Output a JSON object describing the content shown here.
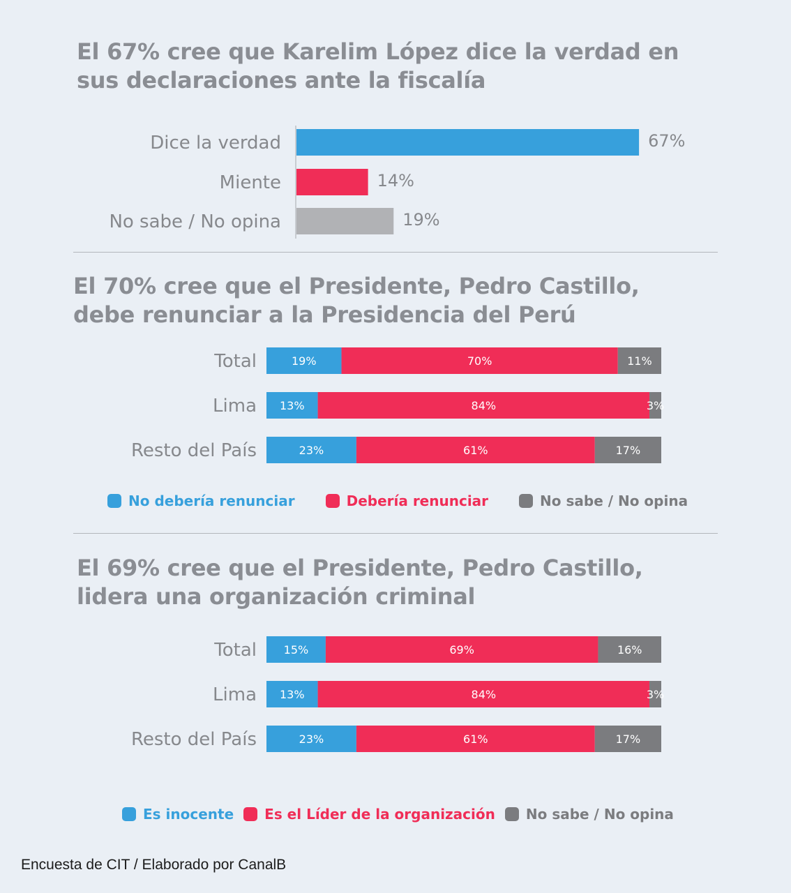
{
  "colors": {
    "blue": "#37a0dc",
    "red": "#f02d57",
    "gray": "#b1b2b5",
    "darkgray": "#7b7c7f",
    "title": "#8a8d93",
    "label": "#86888c"
  },
  "chart_data": [
    {
      "type": "bar",
      "orientation": "horizontal",
      "title": [
        "El 67% cree que Karelim López dice la verdad en",
        "sus declaraciones ante la fiscalía"
      ],
      "categories": [
        "Dice la verdad",
        "Miente",
        "No sabe / No opina"
      ],
      "values": [
        67,
        14,
        19
      ],
      "value_labels": [
        "67%",
        "14%",
        "19%"
      ],
      "bar_colors": [
        "#37a0dc",
        "#f02d57",
        "#b1b2b5"
      ],
      "unit": "%"
    },
    {
      "type": "bar",
      "orientation": "horizontal",
      "stacked": true,
      "title": [
        "El 70% cree que el Presidente, Pedro Castillo,",
        "debe renunciar a la Presidencia del Perú"
      ],
      "categories": [
        "Total",
        "Lima",
        "Resto del País"
      ],
      "series": [
        {
          "name": "No debería renunciar",
          "values": [
            19,
            13,
            23
          ],
          "labels": [
            "19%",
            "13%",
            "23%"
          ],
          "color": "#37a0dc"
        },
        {
          "name": "Debería renunciar",
          "values": [
            70,
            84,
            61
          ],
          "labels": [
            "70%",
            "84%",
            "61%"
          ],
          "color": "#f02d57"
        },
        {
          "name": "No sabe / No opina",
          "values": [
            11,
            3,
            17
          ],
          "labels": [
            "11%",
            "3%",
            "17%"
          ],
          "color": "#7b7c7f"
        }
      ],
      "legend": "bottom",
      "unit": "%"
    },
    {
      "type": "bar",
      "orientation": "horizontal",
      "stacked": true,
      "title": [
        "El 69% cree que el Presidente, Pedro Castillo,",
        "lidera una organización criminal"
      ],
      "categories": [
        "Total",
        "Lima",
        "Resto del País"
      ],
      "series": [
        {
          "name": "Es inocente",
          "values": [
            15,
            13,
            23
          ],
          "labels": [
            "15%",
            "13%",
            "23%"
          ],
          "color": "#37a0dc"
        },
        {
          "name": "Es el Líder de la organización",
          "values": [
            69,
            84,
            61
          ],
          "labels": [
            "69%",
            "84%",
            "61%"
          ],
          "color": "#f02d57"
        },
        {
          "name": "No sabe / No opina",
          "values": [
            16,
            3,
            17
          ],
          "labels": [
            "16%",
            "3%",
            "17%"
          ],
          "color": "#7b7c7f"
        }
      ],
      "legend": "bottom",
      "unit": "%"
    }
  ],
  "legend_text_colors": [
    "#37a0dc",
    "#f02d57",
    "#7b7c7f"
  ],
  "footer": "Encuesta de CIT / Elaborado por CanalB"
}
